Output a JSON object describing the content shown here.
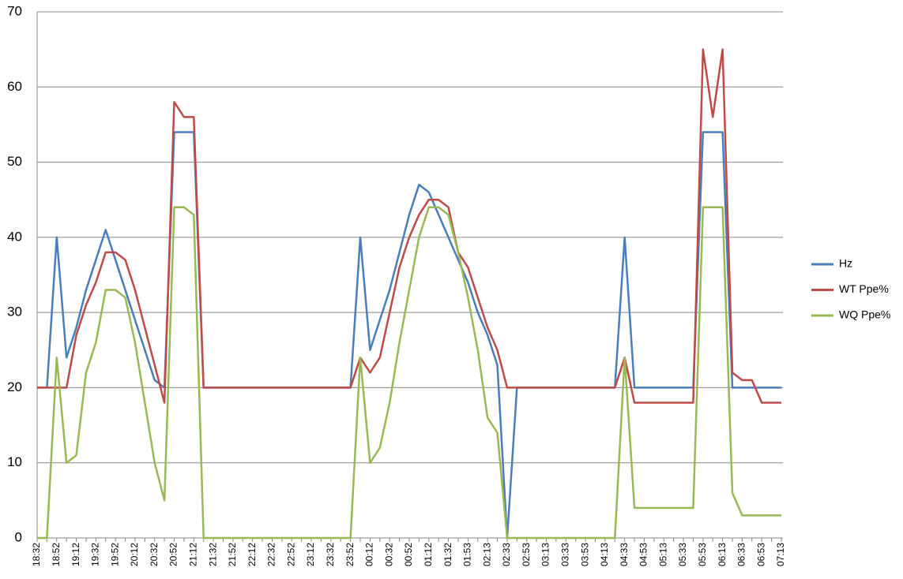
{
  "chart_data": {
    "type": "line",
    "categories": [
      "18:32",
      null,
      "18:52",
      null,
      "19:12",
      null,
      "19:32",
      null,
      "19:52",
      null,
      "20:12",
      null,
      "20:32",
      null,
      "20:52",
      null,
      "21:12",
      null,
      "21:32",
      null,
      "21:52",
      null,
      "22:12",
      null,
      "22:32",
      null,
      "22:52",
      null,
      "23:12",
      null,
      "23:32",
      null,
      "23:52",
      null,
      "00:12",
      null,
      "00:32",
      null,
      "00:52",
      null,
      "01:12",
      null,
      "01:32",
      null,
      "01:53",
      null,
      "02:13",
      null,
      "02:33",
      null,
      "02:53",
      null,
      "03:13",
      null,
      "03:33",
      null,
      "03:53",
      null,
      "04:13",
      null,
      "04:33",
      null,
      "04:53",
      null,
      "05:13",
      null,
      "05:33",
      null,
      "05:53",
      null,
      "06:13",
      null,
      "06:33",
      null,
      "06:53",
      null,
      "07:13"
    ],
    "series": [
      {
        "name": "Hz",
        "color": "#4a7ebb",
        "values": [
          20,
          20,
          40,
          24,
          28,
          33,
          37,
          41,
          37,
          33,
          29,
          25,
          21,
          20,
          54,
          54,
          54,
          20,
          20,
          20,
          20,
          20,
          20,
          20,
          20,
          20,
          20,
          20,
          20,
          20,
          20,
          20,
          20,
          40,
          25,
          29,
          33,
          38,
          43,
          47,
          46,
          43,
          40,
          37,
          34,
          30,
          27,
          23,
          0,
          20,
          20,
          20,
          20,
          20,
          20,
          20,
          20,
          20,
          20,
          20,
          40,
          20,
          20,
          20,
          20,
          20,
          20,
          20,
          54,
          54,
          54,
          20,
          20,
          20,
          20,
          20,
          20
        ]
      },
      {
        "name": "WT Ppe%",
        "color": "#be4b48",
        "values": [
          20,
          20,
          20,
          20,
          27,
          31,
          34,
          38,
          38,
          37,
          33,
          28,
          23,
          18,
          58,
          56,
          56,
          20,
          20,
          20,
          20,
          20,
          20,
          20,
          20,
          20,
          20,
          20,
          20,
          20,
          20,
          20,
          20,
          24,
          22,
          24,
          30,
          36,
          40,
          43,
          45,
          45,
          44,
          38,
          36,
          32,
          28,
          25,
          20,
          20,
          20,
          20,
          20,
          20,
          20,
          20,
          20,
          20,
          20,
          20,
          24,
          18,
          18,
          18,
          18,
          18,
          18,
          18,
          65,
          56,
          65,
          22,
          21,
          21,
          18,
          18,
          18
        ]
      },
      {
        "name": "WQ Ppe%",
        "color": "#98b954",
        "values": [
          0,
          0,
          24,
          10,
          11,
          22,
          26,
          33,
          33,
          32,
          26,
          18,
          10,
          5,
          44,
          44,
          43,
          0,
          0,
          0,
          0,
          0,
          0,
          0,
          0,
          0,
          0,
          0,
          0,
          0,
          0,
          0,
          0,
          24,
          10,
          12,
          18,
          26,
          33,
          40,
          44,
          44,
          43,
          38,
          32,
          25,
          16,
          14,
          0,
          0,
          0,
          0,
          0,
          0,
          0,
          0,
          0,
          0,
          0,
          0,
          24,
          4,
          4,
          4,
          4,
          4,
          4,
          4,
          44,
          44,
          44,
          6,
          3,
          3,
          3,
          3,
          3
        ]
      }
    ],
    "ylim": [
      0,
      70
    ],
    "yticks": [
      0,
      10,
      20,
      30,
      40,
      50,
      60,
      70
    ],
    "grid": true,
    "legend": "right"
  }
}
